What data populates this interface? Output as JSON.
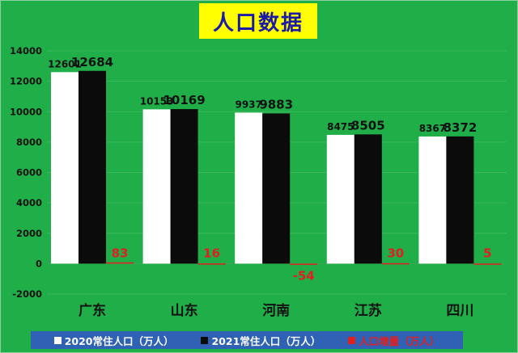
{
  "chart_data": {
    "type": "bar",
    "title": "人口数据",
    "categories": [
      "广东",
      "山东",
      "河南",
      "江苏",
      "四川"
    ],
    "series": [
      {
        "name": "2020常住人口（万人）",
        "color": "#ffffff",
        "values": [
          12601,
          10153,
          9937,
          8475,
          8367
        ],
        "labels": [
          "12601",
          "10153",
          "9937",
          "8475",
          "8367"
        ]
      },
      {
        "name": "2021常住人口（万人）",
        "color": "#0b0b0b",
        "values": [
          12684,
          10169,
          9883,
          8505,
          8372
        ],
        "labels": [
          "12684",
          "10169",
          "9883",
          "8505",
          "8372"
        ]
      },
      {
        "name": "人口增量（万人）",
        "color": "#e02020",
        "values": [
          83,
          16,
          -54,
          30,
          5
        ],
        "labels": [
          "83",
          "16",
          "-54",
          "30",
          "5"
        ]
      }
    ],
    "ylim": [
      -2000,
      14000
    ],
    "yticks": [
      "-2000",
      "0",
      "2000",
      "4000",
      "6000",
      "8000",
      "10000",
      "12000",
      "14000"
    ],
    "grid": true,
    "legend_position": "bottom"
  },
  "colors": {
    "background": "#1fae48",
    "title_box": "#ffff00",
    "title_text": "#1a1aa8",
    "legend_bar": "#2f62b4",
    "increment_label": "#e02020",
    "value_label": "#111111"
  }
}
